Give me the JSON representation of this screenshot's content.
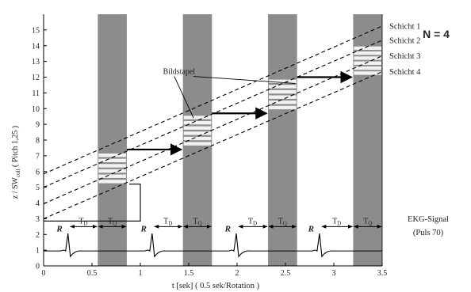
{
  "chart_data": {
    "type": "diagram",
    "title": "",
    "n_label": "N = 4",
    "ylabel": "z / SW",
    "ylabel_sub": "coll",
    "ylabel_suffix": " ( Pitch 1,25 )",
    "xlabel": "t [sek] ( 0.5 sek/Rotation )",
    "x_ticks": [
      {
        "value": 0,
        "label": "0"
      },
      {
        "value": 0.5,
        "label": "0.5"
      },
      {
        "value": 1,
        "label": "1"
      },
      {
        "value": 1.5,
        "label": "1.5"
      },
      {
        "value": 2,
        "label": "2"
      },
      {
        "value": 2.5,
        "label": "2.5"
      },
      {
        "value": 3,
        "label": "3"
      },
      {
        "value": 3.5,
        "label": "3.5"
      }
    ],
    "y_ticks": [
      {
        "value": 0,
        "label": "0"
      },
      {
        "value": 1,
        "label": "1"
      },
      {
        "value": 2,
        "label": "2"
      },
      {
        "value": 3,
        "label": "3"
      },
      {
        "value": 4,
        "label": "4"
      },
      {
        "value": 5,
        "label": "5"
      },
      {
        "value": 6,
        "label": "6"
      },
      {
        "value": 7,
        "label": "7"
      },
      {
        "value": 8,
        "label": "8"
      },
      {
        "value": 9,
        "label": "9"
      },
      {
        "value": 10,
        "label": "10"
      },
      {
        "value": 11,
        "label": "11"
      },
      {
        "value": 12,
        "label": "12"
      },
      {
        "value": 13,
        "label": "13"
      },
      {
        "value": 14,
        "label": "14"
      },
      {
        "value": 15,
        "label": "15"
      }
    ],
    "xlim": [
      0,
      3.5
    ],
    "ylim": [
      0,
      16
    ],
    "gate_color": "#8c8c8c",
    "gates": [
      {
        "start": 0.56,
        "end": 0.86
      },
      {
        "start": 1.44,
        "end": 1.74
      },
      {
        "start": 2.32,
        "end": 2.62
      },
      {
        "start": 3.2,
        "end": 3.5
      }
    ],
    "slices": [
      {
        "label": "Schicht 1",
        "z0": 5.85,
        "z1": 15.25
      },
      {
        "label": "Schicht 2",
        "z0": 5.0,
        "z1": 14.35
      },
      {
        "label": "Schicht 3",
        "z0": 3.95,
        "z1": 13.35
      },
      {
        "label": "Schicht 4",
        "z0": 3.0,
        "z1": 12.35
      }
    ],
    "stacks": [
      {
        "t0": 0.56,
        "t1": 0.86,
        "z_low": 5.2,
        "z_high": 7.2
      },
      {
        "t0": 1.44,
        "t1": 1.74,
        "z_low": 7.6,
        "z_high": 9.6
      },
      {
        "t0": 2.32,
        "t1": 2.62,
        "z_low": 9.9,
        "z_high": 11.9
      },
      {
        "t0": 3.2,
        "t1": 3.5,
        "z_low": 12.1,
        "z_high": 14.0
      }
    ],
    "arrows": [
      {
        "t0": 0.86,
        "t1": 1.44,
        "z": 7.4
      },
      {
        "t0": 1.74,
        "t1": 2.32,
        "z": 9.7
      },
      {
        "t0": 2.62,
        "t1": 3.2,
        "z": 12.0
      }
    ],
    "bildstapel_label": "Bildstapel",
    "bildstapel_anchor": {
      "t": 1.4,
      "z": 12.2
    },
    "bildstapel_targets": [
      {
        "t": 1.55,
        "z": 9.4
      },
      {
        "t": 2.6,
        "z": 11.6
      }
    ],
    "bracket": {
      "t_start": 0,
      "t_end": 1.0,
      "z_bottom": 2.85,
      "z_top": 5.2
    },
    "ekg": {
      "label_line1": "EKG-Signal",
      "label_line2": "(Puls 70)",
      "baseline": 0.95,
      "r_peaks": [
        0.26,
        1.13,
        2.0,
        2.86
      ],
      "peak_label": "R",
      "td_label": "T",
      "td_sub": "D",
      "tq_label": "T",
      "tq_sub": "Q",
      "arrow_level": 2.5,
      "cycles": [
        {
          "r": 0.26,
          "td_end": 0.56,
          "tq_end": 0.86
        },
        {
          "r": 1.13,
          "td_end": 1.44,
          "tq_end": 1.74
        },
        {
          "r": 2.0,
          "td_end": 2.32,
          "tq_end": 2.62
        },
        {
          "r": 2.86,
          "td_end": 3.2,
          "tq_end": 3.5
        }
      ]
    }
  }
}
